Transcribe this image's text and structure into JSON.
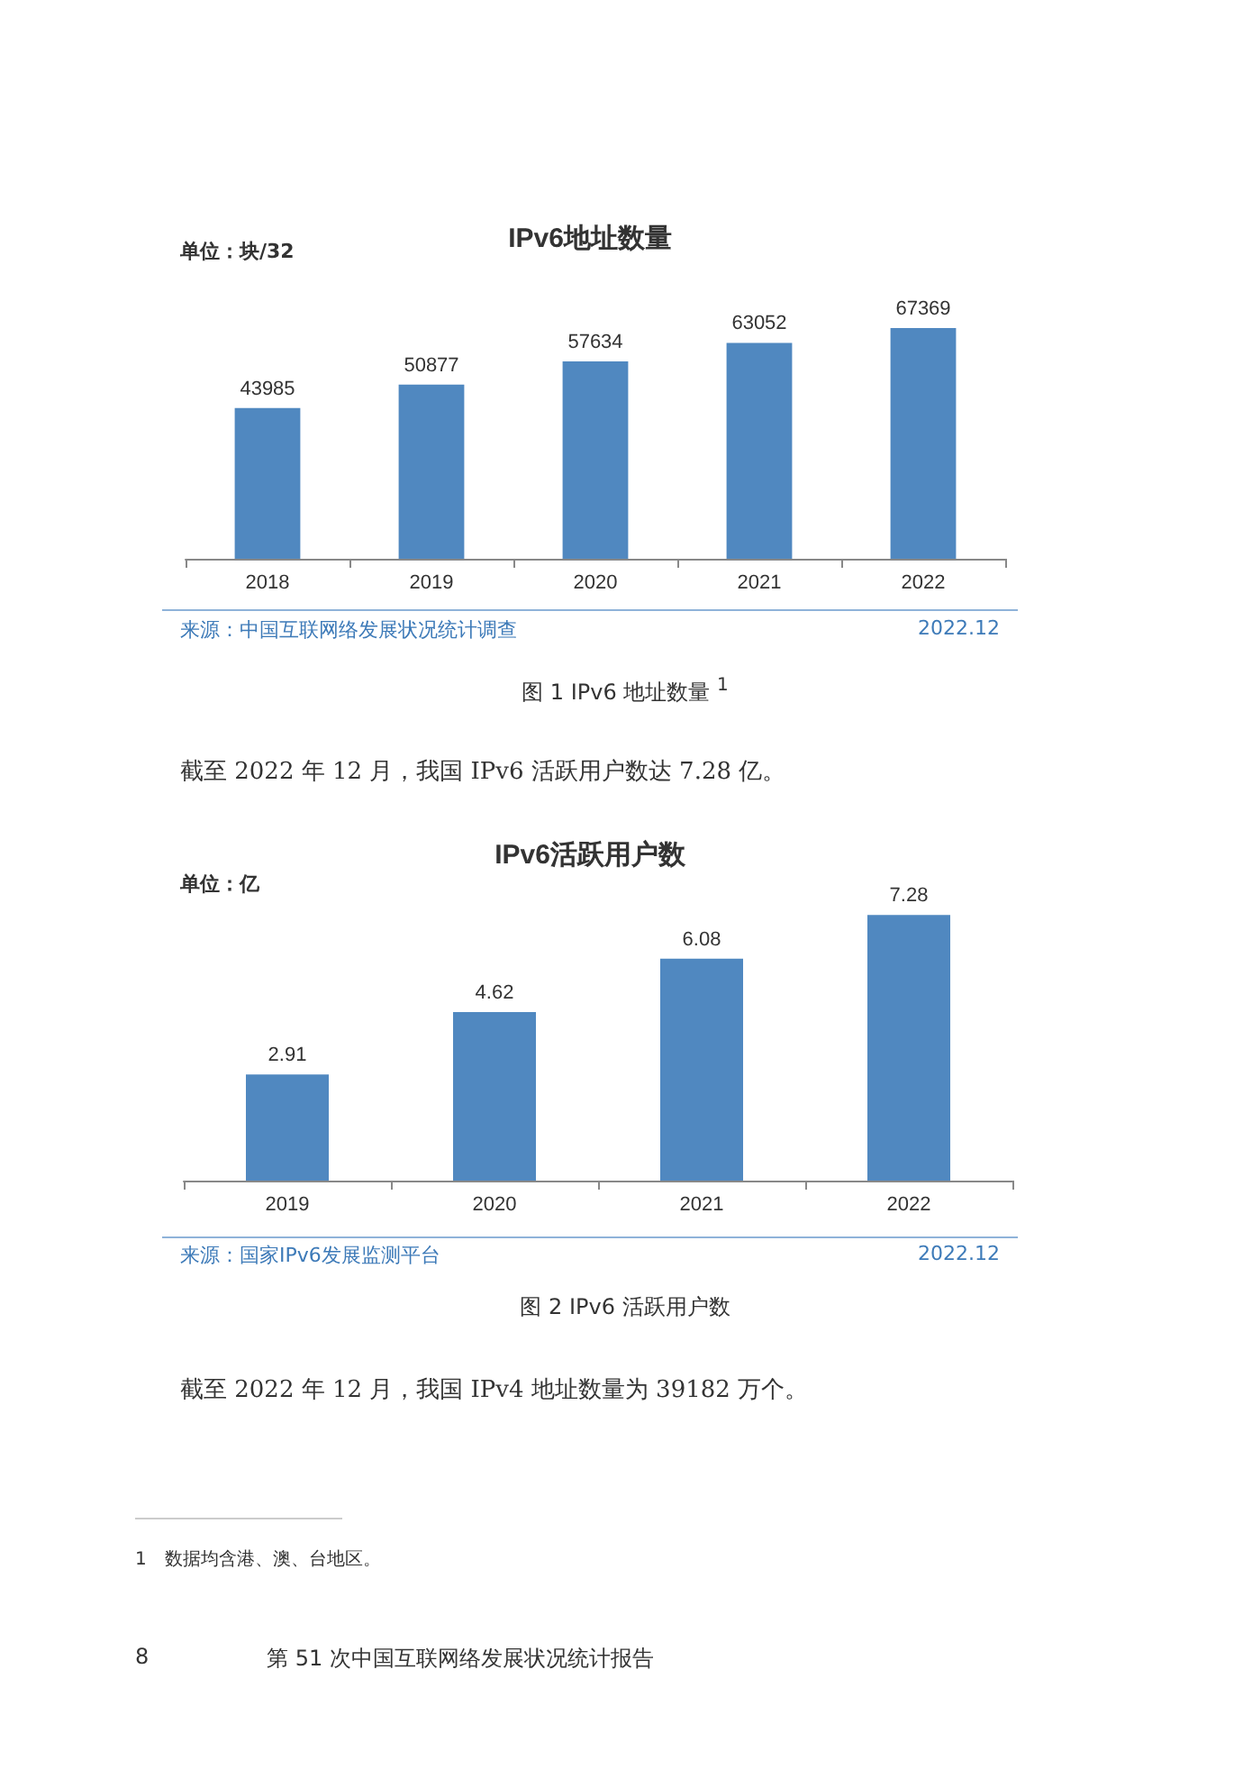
{
  "chart_data": [
    {
      "type": "bar",
      "title": "IPv6地址数量",
      "categories": [
        "2018",
        "2019",
        "2020",
        "2021",
        "2022"
      ],
      "values": [
        43985,
        50877,
        57634,
        63052,
        67369
      ],
      "color": "#5088c0",
      "data_labels": true,
      "annotations": [
        "单位：块/32",
        "来源：中国互联网络发展状况统计调查",
        "2022.12",
        "图 1 IPv6 地址数量 $^{1}$",
        "截至 2022 年 12 月，我国 IPv6 活跃用户数达 7.28 亿。"
      ]
    },
    {
      "type": "bar",
      "title": "IPv6活跃用户数",
      "categories": [
        "2019",
        "2020",
        "2021",
        "2022"
      ],
      "values": [
        2.91,
        4.62,
        6.08,
        7.28
      ],
      "color": "#5088c0",
      "data_labels": true,
      "annotations": [
        "单位：亿",
        "来源：国家IPv6发展监测平台",
        "2022.12",
        "图 2 IPv6 活跃用户数",
        "截至 2022 年 12 月，我国 IPv4 地址数量为 39182 万个。",
        "1　数据均含港、澳、台地区。",
        "8",
        "第 51 次中国互联网络发展状况统计报告"
      ]
    }
  ]
}
